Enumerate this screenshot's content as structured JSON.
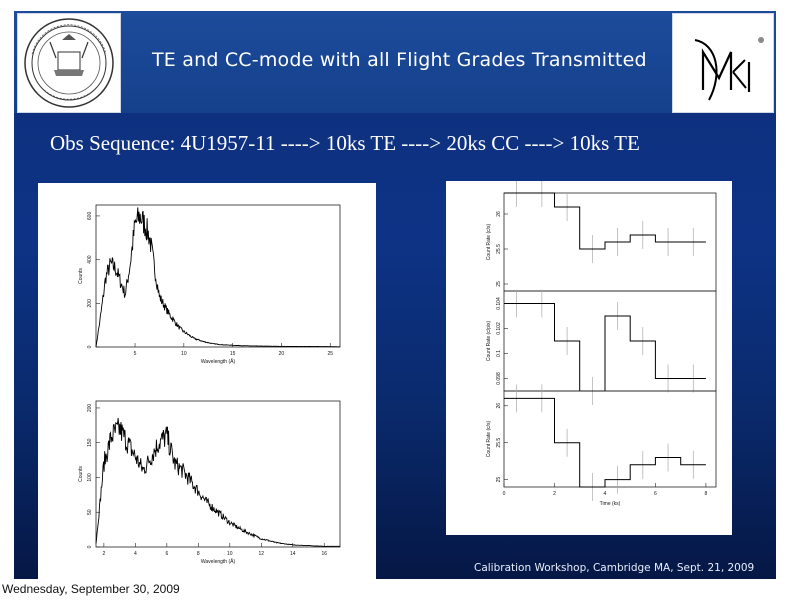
{
  "slide": {
    "title": "TE and CC-mode with all Flight Grades Transmitted",
    "subtitle": "Obs Sequence: 4U1957-11 ---->  10ks TE ----> 20ks CC ----> 10ks TE",
    "footer_credit": "Calibration Workshop, Cambridge MA, Sept. 21, 2009"
  },
  "page_footer": {
    "date": "Wednesday, September 30, 2009"
  },
  "logos": {
    "left": "mit-seal",
    "right": "mki-logo"
  },
  "chart_data": [
    {
      "type": "line",
      "title": "",
      "xlabel": "Wavelength (Å)",
      "ylabel": "Counts",
      "xticks": [
        "5",
        "10",
        "15",
        "20",
        "25"
      ],
      "yticks": [
        "0",
        "200",
        "400",
        "600"
      ],
      "xlim": [
        1,
        26
      ],
      "ylim": [
        0,
        650
      ],
      "series": [
        {
          "x": [
            1,
            1.5,
            2,
            2.5,
            3,
            3.5,
            4,
            4.5,
            5,
            5.5,
            6,
            6.5,
            7,
            7.5,
            8,
            8.5,
            9,
            9.5,
            10,
            11,
            12,
            13,
            14,
            16,
            18,
            20,
            22,
            24,
            26
          ],
          "y": [
            0,
            150,
            320,
            380,
            360,
            300,
            240,
            380,
            560,
            600,
            560,
            500,
            360,
            230,
            190,
            150,
            120,
            90,
            70,
            40,
            25,
            15,
            10,
            6,
            4,
            3,
            2,
            2,
            1
          ]
        }
      ]
    },
    {
      "type": "line",
      "title": "",
      "xlabel": "Wavelength (Å)",
      "ylabel": "Counts",
      "xticks": [
        "2",
        "4",
        "6",
        "8",
        "10",
        "12",
        "14",
        "16"
      ],
      "yticks": [
        "0",
        "50",
        "100",
        "150",
        "200"
      ],
      "xlim": [
        1.5,
        17
      ],
      "ylim": [
        0,
        210
      ],
      "series": [
        {
          "x": [
            1.5,
            2,
            2.5,
            3,
            3.5,
            4,
            4.5,
            5,
            5.5,
            6,
            6.5,
            7,
            7.5,
            8,
            8.5,
            9,
            9.5,
            10,
            10.5,
            11,
            12,
            13,
            14,
            15,
            16,
            17
          ],
          "y": [
            5,
            120,
            160,
            170,
            150,
            130,
            110,
            130,
            150,
            160,
            120,
            110,
            95,
            80,
            65,
            55,
            45,
            35,
            28,
            22,
            12,
            6,
            3,
            2,
            1,
            1
          ]
        }
      ]
    },
    {
      "type": "line",
      "title": "",
      "xlabel": "Time (ks)",
      "ylabel": "Count Rate (c/s)",
      "yticks": [
        "25",
        "25.5",
        "26"
      ],
      "ylim": [
        24.9,
        26.3
      ],
      "series": [
        {
          "x": [
            0,
            1,
            2,
            3,
            4,
            5,
            6,
            7
          ],
          "y": [
            26.4,
            26.4,
            26.1,
            25.5,
            25.6,
            25.7,
            25.6,
            25.6
          ]
        }
      ]
    },
    {
      "type": "line",
      "title": "",
      "xlabel": "Time (ks)",
      "ylabel": "Count Rate (c/pix)",
      "yticks": [
        "0.098",
        "0.1",
        "0.102",
        "0.104"
      ],
      "ylim": [
        0.097,
        0.105
      ],
      "series": [
        {
          "x": [
            0,
            1,
            2,
            3,
            4,
            5,
            6,
            7
          ],
          "y": [
            0.104,
            0.104,
            0.101,
            0.097,
            0.103,
            0.101,
            0.098,
            0.098
          ]
        }
      ]
    },
    {
      "type": "line",
      "title": "",
      "xlabel": "Time (ks)",
      "ylabel": "Count Rate (c/s)",
      "xticks": [
        "0",
        "2",
        "4",
        "6",
        "8"
      ],
      "yticks": [
        "25",
        "25.5",
        "26"
      ],
      "xlim": [
        0,
        8.4
      ],
      "ylim": [
        24.9,
        26.2
      ],
      "series": [
        {
          "x": [
            0,
            1,
            2,
            3,
            4,
            5,
            6,
            7
          ],
          "y": [
            26.1,
            26.1,
            25.5,
            24.9,
            25.0,
            25.2,
            25.3,
            25.2
          ]
        }
      ]
    }
  ]
}
